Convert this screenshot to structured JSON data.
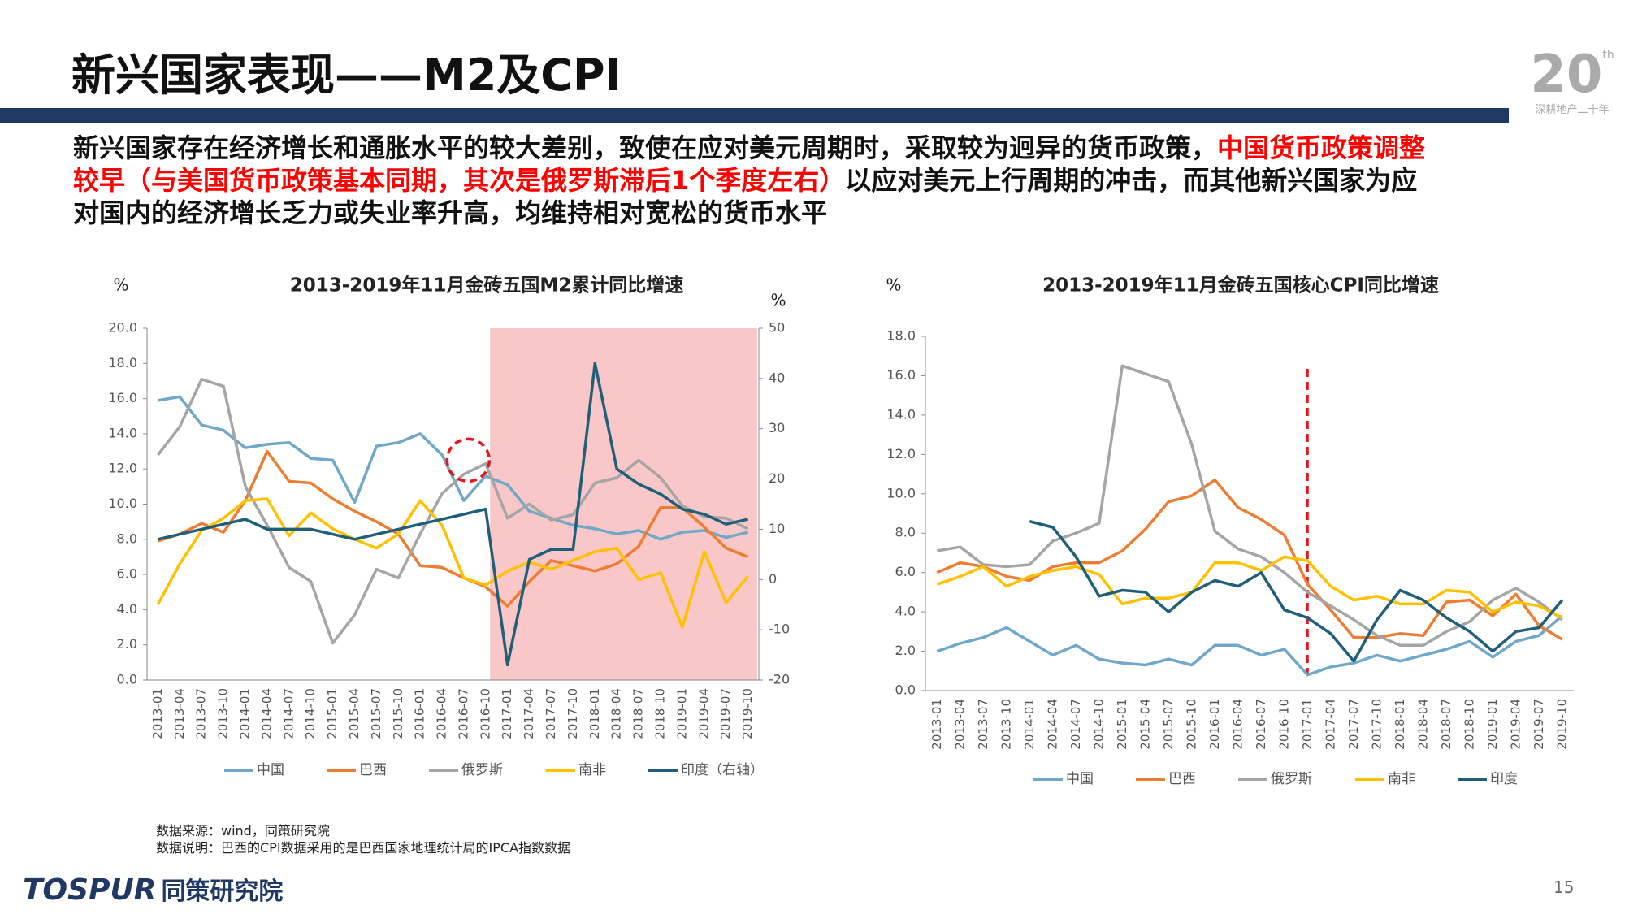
{
  "header": {
    "title": "新兴国家表现——M2及CPI",
    "badge_number": "20",
    "badge_suffix": "th",
    "badge_text": "深耕地产二十年"
  },
  "paragraph": [
    [
      {
        "text": "新兴国家存在经济增长和通胀水平的较大差别，致使在应对美元周期时，采取较为迥异的货币政策，",
        "color": "#111111"
      },
      {
        "text": "中国货币政策调整",
        "color": "#ff0000"
      }
    ],
    [
      {
        "text": "较早（与美国货币政策基本同期，其次是俄罗斯滞后1个季度左右）",
        "color": "#ff0000"
      },
      {
        "text": "以应对美元上行周期的冲击，而其他新兴国家为应",
        "color": "#111111"
      }
    ],
    [
      {
        "text": "对国内的经济增长乏力或失业率升高，均维持相对宽松的货币水平",
        "color": "#111111"
      }
    ]
  ],
  "chart_data": [
    {
      "type": "line",
      "title": "2013-2019年11月金砖五国M2累计同比增速",
      "y_unit": "%",
      "y2_unit": "%",
      "categories": [
        "2013-01",
        "2013-04",
        "2013-07",
        "2013-10",
        "2014-01",
        "2014-04",
        "2014-07",
        "2014-10",
        "2015-01",
        "2015-04",
        "2015-07",
        "2015-10",
        "2016-01",
        "2016-04",
        "2016-07",
        "2016-10",
        "2017-01",
        "2017-04",
        "2017-07",
        "2017-10",
        "2018-01",
        "2018-04",
        "2018-07",
        "2018-10",
        "2019-01",
        "2019-04",
        "2019-07",
        "2019-10"
      ],
      "ylim": [
        0,
        20
      ],
      "yticks": [
        {
          "value": 0,
          "label": "0.0"
        },
        {
          "value": 2,
          "label": "2.0"
        },
        {
          "value": 4,
          "label": "4.0"
        },
        {
          "value": 6,
          "label": "6.0"
        },
        {
          "value": 8,
          "label": "8.0"
        },
        {
          "value": 10,
          "label": "10.0"
        },
        {
          "value": 12,
          "label": "12.0"
        },
        {
          "value": 14,
          "label": "14.0"
        },
        {
          "value": 16,
          "label": "16.0"
        },
        {
          "value": 18,
          "label": "18.0"
        },
        {
          "value": 20,
          "label": "20.0"
        }
      ],
      "y2lim": [
        -20,
        50
      ],
      "y2ticks": [
        -20,
        -10,
        0,
        10,
        20,
        30,
        40,
        50
      ],
      "series": [
        {
          "name": "中国",
          "color": "#6fa8c8",
          "values": [
            15.9,
            16.1,
            14.5,
            14.2,
            13.2,
            13.4,
            13.5,
            12.6,
            12.5,
            10.1,
            13.3,
            13.5,
            14.0,
            12.8,
            10.2,
            11.6,
            11.1,
            9.6,
            9.2,
            8.8,
            8.6,
            8.3,
            8.5,
            8.0,
            8.4,
            8.5,
            8.1,
            8.4
          ]
        },
        {
          "name": "巴西",
          "color": "#ed7d31",
          "values": [
            7.9,
            8.3,
            8.9,
            8.4,
            10.2,
            13.0,
            11.3,
            11.2,
            10.3,
            9.6,
            9.0,
            8.3,
            6.5,
            6.4,
            5.8,
            5.3,
            4.2,
            5.6,
            6.8,
            6.5,
            6.2,
            6.6,
            7.6,
            9.8,
            9.8,
            8.7,
            7.5,
            7.0
          ]
        },
        {
          "name": "俄罗斯",
          "color": "#a5a5a5",
          "values": [
            12.8,
            14.4,
            17.1,
            16.7,
            11.0,
            8.8,
            6.4,
            5.6,
            2.1,
            3.7,
            6.3,
            5.8,
            8.3,
            10.6,
            11.7,
            12.3,
            9.2,
            10.0,
            9.1,
            9.4,
            11.2,
            11.5,
            12.5,
            11.5,
            9.9,
            9.3,
            9.2,
            8.6
          ]
        },
        {
          "name": "南非",
          "color": "#ffc000",
          "values": [
            4.3,
            6.6,
            8.5,
            9.2,
            10.2,
            10.3,
            8.2,
            9.5,
            8.6,
            8.0,
            7.5,
            8.3,
            10.2,
            8.8,
            5.8,
            5.4,
            6.2,
            6.7,
            6.3,
            6.8,
            7.3,
            7.5,
            5.7,
            6.1,
            3.0,
            7.3,
            4.4,
            5.9
          ]
        },
        {
          "name": "印度（右轴）",
          "color": "#1f5f7a",
          "axis": "y2",
          "values": [
            8,
            9,
            10,
            11,
            12,
            10,
            10,
            10,
            9,
            8,
            9,
            10,
            11,
            12,
            13,
            14,
            -17,
            4,
            6,
            6,
            43,
            22,
            19,
            17,
            14,
            13,
            11,
            12
          ]
        }
      ]
    },
    {
      "type": "line",
      "title": "2013-2019年11月金砖五国核心CPI同比增速",
      "y_unit": "%",
      "categories": [
        "2013-01",
        "2013-04",
        "2013-07",
        "2013-10",
        "2014-01",
        "2014-04",
        "2014-07",
        "2014-10",
        "2015-01",
        "2015-04",
        "2015-07",
        "2015-10",
        "2016-01",
        "2016-04",
        "2016-07",
        "2016-10",
        "2017-01",
        "2017-04",
        "2017-07",
        "2017-10",
        "2018-01",
        "2018-04",
        "2018-07",
        "2018-10",
        "2019-01",
        "2019-04",
        "2019-07",
        "2019-10"
      ],
      "ylim": [
        0,
        18
      ],
      "yticks": [
        {
          "value": 0,
          "label": "0.0"
        },
        {
          "value": 2,
          "label": "2.0"
        },
        {
          "value": 4,
          "label": "4.0"
        },
        {
          "value": 6,
          "label": "6.0"
        },
        {
          "value": 8,
          "label": "8.0"
        },
        {
          "value": 10,
          "label": "10.0"
        },
        {
          "value": 12,
          "label": "12.0"
        },
        {
          "value": 14,
          "label": "14.0"
        },
        {
          "value": 16,
          "label": "16.0"
        },
        {
          "value": 18,
          "label": "18.0"
        }
      ],
      "series": [
        {
          "name": "中国",
          "color": "#6fa8c8",
          "values": [
            2.0,
            2.4,
            2.7,
            3.2,
            2.5,
            1.8,
            2.3,
            1.6,
            1.4,
            1.3,
            1.6,
            1.3,
            2.3,
            2.3,
            1.8,
            2.1,
            0.8,
            1.2,
            1.4,
            1.8,
            1.5,
            1.8,
            2.1,
            2.5,
            1.7,
            2.5,
            2.8,
            3.8
          ]
        },
        {
          "name": "巴西",
          "color": "#ed7d31",
          "values": [
            6.0,
            6.5,
            6.3,
            5.8,
            5.6,
            6.3,
            6.5,
            6.5,
            7.1,
            8.2,
            9.6,
            9.9,
            10.7,
            9.3,
            8.7,
            7.9,
            5.4,
            4.1,
            2.7,
            2.7,
            2.9,
            2.8,
            4.5,
            4.6,
            3.8,
            4.9,
            3.3,
            2.6
          ]
        },
        {
          "name": "俄罗斯",
          "color": "#a5a5a5",
          "values": [
            7.1,
            7.3,
            6.4,
            6.3,
            6.4,
            7.6,
            8.0,
            8.5,
            16.5,
            16.1,
            15.7,
            12.5,
            8.1,
            7.2,
            6.8,
            6.0,
            5.0,
            4.3,
            3.6,
            2.8,
            2.3,
            2.3,
            3.0,
            3.5,
            4.6,
            5.2,
            4.5,
            3.6
          ]
        },
        {
          "name": "南非",
          "color": "#ffc000",
          "values": [
            5.4,
            5.8,
            6.3,
            5.3,
            5.8,
            6.1,
            6.3,
            5.9,
            4.4,
            4.7,
            4.7,
            5.0,
            6.5,
            6.5,
            6.1,
            6.8,
            6.6,
            5.3,
            4.6,
            4.8,
            4.4,
            4.4,
            5.1,
            5.0,
            4.0,
            4.5,
            4.3,
            3.7
          ]
        },
        {
          "name": "印度",
          "color": "#1f5f7a",
          "values": [
            null,
            null,
            null,
            null,
            8.6,
            8.3,
            6.8,
            4.8,
            5.1,
            5.0,
            4.0,
            5.0,
            5.6,
            5.3,
            6.0,
            4.1,
            3.7,
            2.9,
            1.5,
            3.6,
            5.1,
            4.6,
            3.7,
            3.0,
            2.0,
            3.0,
            3.2,
            4.6
          ]
        }
      ]
    }
  ],
  "notes": [
    "数据来源：wind，同策研究院",
    "数据说明：巴西的CPI数据采用的是巴西国家地理统计局的IPCA指数数据"
  ],
  "footer": {
    "logo": "TOSPUR",
    "logo_name": "同策研究院",
    "page": "15"
  }
}
